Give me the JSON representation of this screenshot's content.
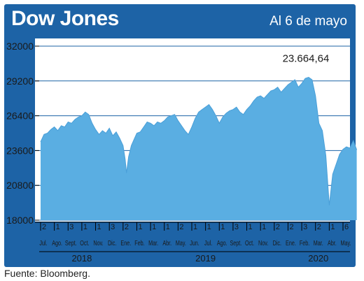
{
  "header": {
    "title": "Dow Jones",
    "date": "Al 6 de mayo"
  },
  "source": "Fuente: Bloomberg.",
  "colors": {
    "frame": "#1d63a6",
    "area": "#5aaee2",
    "grid": "#1d63a6"
  },
  "chart_data": {
    "type": "area",
    "title": "Dow Jones",
    "ylim": [
      18000,
      32000
    ],
    "yticks": [
      18000,
      20800,
      23600,
      26400,
      29200,
      32000
    ],
    "ytick_labels": [
      "18000",
      "20800",
      "23600",
      "26400",
      "29200",
      "32000"
    ],
    "annotation": "23.664,64",
    "grid": "horizontal",
    "weeks": [
      {
        "day": "2",
        "month": "Jul."
      },
      {
        "day": "1",
        "month": "Ago."
      },
      {
        "day": "3",
        "month": "Sept."
      },
      {
        "day": "1",
        "month": "Oct."
      },
      {
        "day": "1",
        "month": "Nov."
      },
      {
        "day": "3",
        "month": "Dic."
      },
      {
        "day": "2",
        "month": "Ene."
      },
      {
        "day": "1",
        "month": "Feb."
      },
      {
        "day": "1",
        "month": "Mar."
      },
      {
        "day": "1",
        "month": "Abr."
      },
      {
        "day": "2",
        "month": "May."
      },
      {
        "day": "1",
        "month": "Jun."
      },
      {
        "day": "1",
        "month": "Jul."
      },
      {
        "day": "1",
        "month": "Ago."
      },
      {
        "day": "3",
        "month": "Sept."
      },
      {
        "day": "1",
        "month": "Oct."
      },
      {
        "day": "1",
        "month": "Nov."
      },
      {
        "day": "2",
        "month": "Dic."
      },
      {
        "day": "2",
        "month": "Ene."
      },
      {
        "day": "3",
        "month": "Feb."
      },
      {
        "day": "2",
        "month": "Mar."
      },
      {
        "day": "1",
        "month": "Abr."
      },
      {
        "day": "6",
        "month": "May."
      }
    ],
    "years": [
      {
        "label": "2018",
        "start": 0,
        "end": 6
      },
      {
        "label": "2019",
        "start": 6,
        "end": 18
      },
      {
        "label": "2020",
        "start": 18,
        "end": 23
      }
    ],
    "series": [
      {
        "values": [
          [
            0,
            24300
          ],
          [
            0.25,
            24900
          ],
          [
            0.5,
            25000
          ],
          [
            0.75,
            25300
          ],
          [
            1,
            25500
          ],
          [
            1.25,
            25200
          ],
          [
            1.5,
            25600
          ],
          [
            1.75,
            25500
          ],
          [
            2,
            25900
          ],
          [
            2.25,
            25800
          ],
          [
            2.5,
            26100
          ],
          [
            2.75,
            26300
          ],
          [
            3,
            26400
          ],
          [
            3.25,
            26700
          ],
          [
            3.5,
            26500
          ],
          [
            3.75,
            25800
          ],
          [
            4,
            25300
          ],
          [
            4.25,
            24900
          ],
          [
            4.5,
            25200
          ],
          [
            4.75,
            25000
          ],
          [
            5,
            25400
          ],
          [
            5.25,
            24800
          ],
          [
            5.5,
            25100
          ],
          [
            5.75,
            24600
          ],
          [
            6,
            24000
          ],
          [
            6.15,
            22900
          ],
          [
            6.25,
            21800
          ],
          [
            6.4,
            23100
          ],
          [
            6.6,
            24000
          ],
          [
            6.8,
            24500
          ],
          [
            7,
            25000
          ],
          [
            7.25,
            25100
          ],
          [
            7.5,
            25500
          ],
          [
            7.75,
            25900
          ],
          [
            8,
            25800
          ],
          [
            8.25,
            25600
          ],
          [
            8.5,
            25900
          ],
          [
            8.75,
            25800
          ],
          [
            9,
            26000
          ],
          [
            9.25,
            26300
          ],
          [
            9.5,
            26400
          ],
          [
            9.75,
            26500
          ],
          [
            10,
            26000
          ],
          [
            10.25,
            25600
          ],
          [
            10.5,
            25200
          ],
          [
            10.75,
            24900
          ],
          [
            11,
            25500
          ],
          [
            11.25,
            26200
          ],
          [
            11.5,
            26700
          ],
          [
            11.75,
            26900
          ],
          [
            12,
            27100
          ],
          [
            12.25,
            27300
          ],
          [
            12.5,
            26900
          ],
          [
            12.75,
            26400
          ],
          [
            13,
            25800
          ],
          [
            13.25,
            26300
          ],
          [
            13.5,
            26600
          ],
          [
            13.75,
            26800
          ],
          [
            14,
            26900
          ],
          [
            14.25,
            27100
          ],
          [
            14.5,
            26700
          ],
          [
            14.75,
            26500
          ],
          [
            15,
            26900
          ],
          [
            15.25,
            27200
          ],
          [
            15.5,
            27600
          ],
          [
            15.75,
            27900
          ],
          [
            16,
            28000
          ],
          [
            16.25,
            27800
          ],
          [
            16.5,
            28100
          ],
          [
            16.75,
            28400
          ],
          [
            17,
            28500
          ],
          [
            17.25,
            28700
          ],
          [
            17.5,
            28300
          ],
          [
            17.75,
            28600
          ],
          [
            18,
            28900
          ],
          [
            18.25,
            29100
          ],
          [
            18.5,
            29300
          ],
          [
            18.75,
            28700
          ],
          [
            19,
            29000
          ],
          [
            19.25,
            29400
          ],
          [
            19.5,
            29500
          ],
          [
            19.75,
            29300
          ],
          [
            20,
            28000
          ],
          [
            20.25,
            25800
          ],
          [
            20.5,
            25200
          ],
          [
            20.75,
            23200
          ],
          [
            21,
            19200
          ],
          [
            21.25,
            21700
          ],
          [
            21.5,
            22500
          ],
          [
            21.75,
            23300
          ],
          [
            22,
            23700
          ],
          [
            22.25,
            23900
          ],
          [
            22.5,
            23800
          ],
          [
            22.75,
            24400
          ],
          [
            23,
            23664.64
          ]
        ]
      }
    ]
  }
}
